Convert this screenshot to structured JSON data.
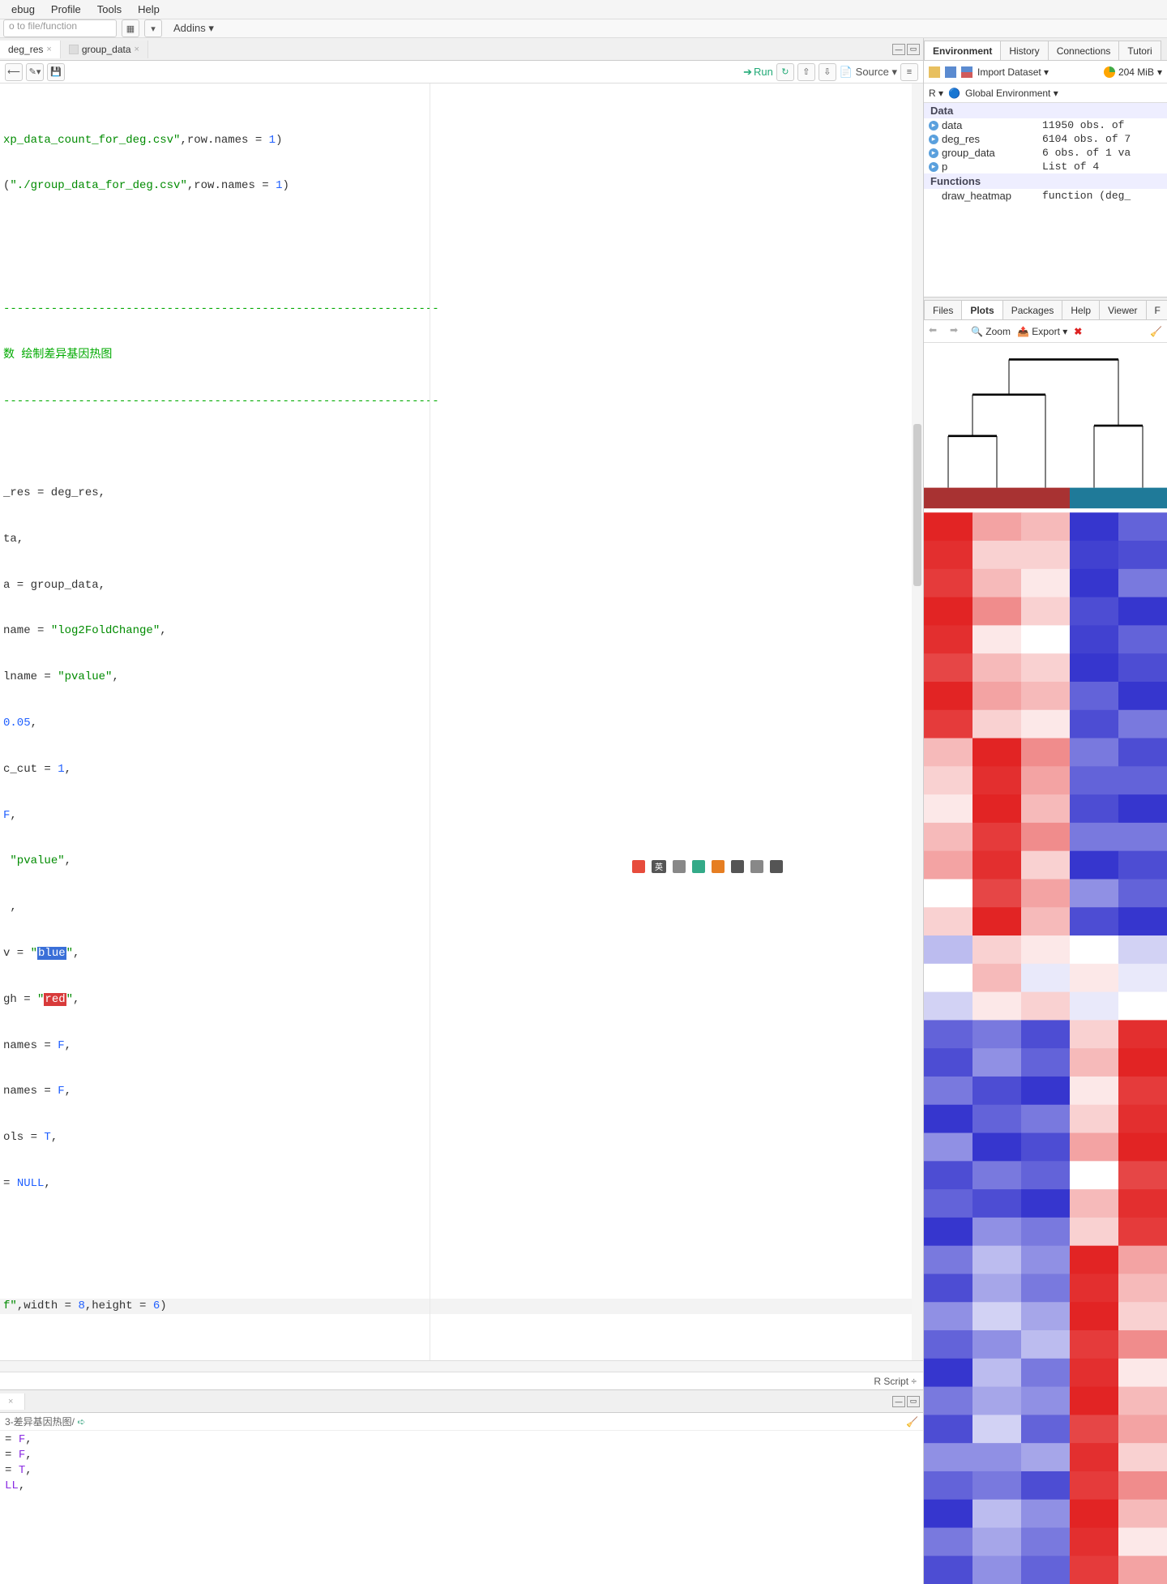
{
  "menu": {
    "items": [
      "ebug",
      "Profile",
      "Tools",
      "Help"
    ]
  },
  "toolbar": {
    "goto_placeholder": "o to file/function",
    "addins": "Addins"
  },
  "editor_tabs": {
    "t1": "deg_res",
    "t2": "group_data"
  },
  "editor_toolbar": {
    "run": "Run",
    "source": "Source"
  },
  "code": {
    "l1a": "xp_data_count_for_deg.csv\"",
    "l1b": ",row.names = ",
    "l1c": "1",
    "l1d": ")",
    "l2a": "(",
    "l2b": "\"./group_data_for_deg.csv\"",
    "l2c": ",row.names = ",
    "l2d": "1",
    "l2e": ")",
    "dash": "----------------------------------------------------------------",
    "cmt": "数 绘制差异基因热图",
    "dash2": "----------------------------------------------------------------",
    "p1": "_res = deg_res,",
    "p2": "ta,",
    "p3": "a = group_data,",
    "p4a": "name = ",
    "p4b": "\"log2FoldChange\"",
    "p4c": ",",
    "p5a": "lname = ",
    "p5b": "\"pvalue\"",
    "p5c": ",",
    "p6a": "0.05",
    "p6b": ",",
    "p7a": "c_cut = ",
    "p7b": "1",
    "p7c": ",",
    "p8a": "F",
    "p8b": ",",
    "p9a": " ",
    "p9b": "\"pvalue\"",
    "p9c": ",",
    "p10": " ,",
    "p11a": "v = ",
    "p11b_q1": "\"",
    "p11b": "blue",
    "p11b_q2": "\"",
    "p11c": ",",
    "p12a": "gh = ",
    "p12b_q1": "\"",
    "p12b": "red",
    "p12b_q2": "\"",
    "p12c": ",",
    "p13a": "names = ",
    "p13b": "F",
    "p13c": ",",
    "p14a": "names = ",
    "p14b": "F",
    "p14c": ",",
    "p15a": "ols = ",
    "p15b": "T",
    "p15c": ",",
    "p16a": "= ",
    "p16b": "NULL",
    "p16c": ",",
    "last_a": "f\"",
    "last_b": ",width = ",
    "last_c": "8",
    "last_d": ",height = ",
    "last_e": "6",
    "last_f": ")"
  },
  "status": {
    "lang": "R Script",
    "arrow": "÷"
  },
  "console": {
    "path": "3-差异基因热图/",
    "l1a": "= ",
    "l1b": "F",
    "l1c": ",",
    "l2a": "= ",
    "l2b": "F",
    "l2c": ",",
    "l3a": "= ",
    "l3b": "T",
    "l3c": ",",
    "l4a": "LL",
    "l4b": ","
  },
  "env_tabs": {
    "t1": "Environment",
    "t2": "History",
    "t3": "Connections",
    "t4": "Tutori"
  },
  "env_toolbar": {
    "import": "Import Dataset",
    "mem": "204 MiB"
  },
  "env_sel": {
    "r": "R",
    "global": "Global Environment"
  },
  "env": {
    "hdr1": "Data",
    "r1n": "data",
    "r1v": "11950 obs. of",
    "r2n": "deg_res",
    "r2v": "6104 obs. of 7",
    "r3n": "group_data",
    "r3v": "6 obs. of 1 va",
    "r4n": "p",
    "r4v": "List of  4",
    "hdr2": "Functions",
    "r5n": "draw_heatmap",
    "r5v": "function (deg_"
  },
  "plot_tabs": {
    "t1": "Files",
    "t2": "Plots",
    "t3": "Packages",
    "t4": "Help",
    "t5": "Viewer",
    "t6": "F"
  },
  "plot_toolbar": {
    "zoom": "Zoom",
    "export": "Export"
  },
  "heatmap": {
    "annot_colors": [
      "#a83232",
      "#a83232",
      "#a83232",
      "#1f7a99",
      "#1f7a99"
    ],
    "columns": 5,
    "palette": {
      "low": "#2020c8",
      "mid": "#ffffff",
      "high": "#e01818"
    },
    "rows": [
      [
        0.95,
        0.4,
        0.3,
        -0.9,
        -0.7
      ],
      [
        0.9,
        0.2,
        0.2,
        -0.85,
        -0.8
      ],
      [
        0.85,
        0.3,
        0.1,
        -0.9,
        -0.6
      ],
      [
        0.95,
        0.5,
        0.2,
        -0.8,
        -0.9
      ],
      [
        0.9,
        0.1,
        0.0,
        -0.85,
        -0.7
      ],
      [
        0.8,
        0.3,
        0.2,
        -0.9,
        -0.8
      ],
      [
        0.95,
        0.4,
        0.3,
        -0.7,
        -0.9
      ],
      [
        0.85,
        0.2,
        0.1,
        -0.8,
        -0.6
      ],
      [
        0.3,
        0.95,
        0.5,
        -0.6,
        -0.8
      ],
      [
        0.2,
        0.9,
        0.4,
        -0.7,
        -0.7
      ],
      [
        0.1,
        0.95,
        0.3,
        -0.8,
        -0.9
      ],
      [
        0.3,
        0.85,
        0.5,
        -0.6,
        -0.6
      ],
      [
        0.4,
        0.9,
        0.2,
        -0.9,
        -0.8
      ],
      [
        0.0,
        0.8,
        0.4,
        -0.5,
        -0.7
      ],
      [
        0.2,
        0.95,
        0.3,
        -0.8,
        -0.9
      ],
      [
        -0.3,
        0.2,
        0.1,
        0.0,
        -0.2
      ],
      [
        0.0,
        0.3,
        -0.1,
        0.1,
        -0.1
      ],
      [
        -0.2,
        0.1,
        0.2,
        -0.1,
        0.0
      ],
      [
        -0.7,
        -0.6,
        -0.8,
        0.2,
        0.9
      ],
      [
        -0.8,
        -0.5,
        -0.7,
        0.3,
        0.95
      ],
      [
        -0.6,
        -0.8,
        -0.9,
        0.1,
        0.85
      ],
      [
        -0.9,
        -0.7,
        -0.6,
        0.2,
        0.9
      ],
      [
        -0.5,
        -0.9,
        -0.8,
        0.4,
        0.95
      ],
      [
        -0.8,
        -0.6,
        -0.7,
        0.0,
        0.8
      ],
      [
        -0.7,
        -0.8,
        -0.9,
        0.3,
        0.9
      ],
      [
        -0.9,
        -0.5,
        -0.6,
        0.2,
        0.85
      ],
      [
        -0.6,
        -0.3,
        -0.5,
        0.95,
        0.4
      ],
      [
        -0.8,
        -0.4,
        -0.6,
        0.9,
        0.3
      ],
      [
        -0.5,
        -0.2,
        -0.4,
        0.95,
        0.2
      ],
      [
        -0.7,
        -0.5,
        -0.3,
        0.85,
        0.5
      ],
      [
        -0.9,
        -0.3,
        -0.6,
        0.9,
        0.1
      ],
      [
        -0.6,
        -0.4,
        -0.5,
        0.95,
        0.3
      ],
      [
        -0.8,
        -0.2,
        -0.7,
        0.8,
        0.4
      ],
      [
        -0.5,
        -0.5,
        -0.4,
        0.9,
        0.2
      ],
      [
        -0.7,
        -0.6,
        -0.8,
        0.85,
        0.5
      ],
      [
        -0.9,
        -0.3,
        -0.5,
        0.95,
        0.3
      ],
      [
        -0.6,
        -0.4,
        -0.6,
        0.9,
        0.1
      ],
      [
        -0.8,
        -0.5,
        -0.7,
        0.85,
        0.4
      ]
    ]
  }
}
